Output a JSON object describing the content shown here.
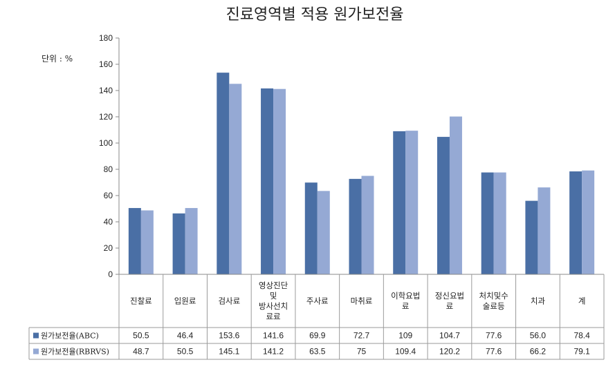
{
  "chart_data": {
    "type": "bar",
    "title": "진료영역별 적용 원가보전율",
    "unit_label": "단위 : %",
    "ylim": [
      0,
      180
    ],
    "ytick_step": 20,
    "grid": false,
    "legend_placement": "data-table",
    "categories": [
      [
        "진찰료"
      ],
      [
        "입원료"
      ],
      [
        "검사료"
      ],
      [
        "영상진단",
        "및",
        "방사선치",
        "료료"
      ],
      [
        "주사료"
      ],
      [
        "마취료"
      ],
      [
        "이학요법",
        "료"
      ],
      [
        "정신요법",
        "료"
      ],
      [
        "처치및수",
        "술료등"
      ],
      [
        "치과"
      ],
      [
        "계"
      ]
    ],
    "series": [
      {
        "name": "원가보전율(ABC)",
        "color": "#4a6fa5",
        "values": [
          50.5,
          46.4,
          153.6,
          141.6,
          69.9,
          72.7,
          109,
          104.7,
          77.6,
          56.0,
          78.4
        ],
        "labels": [
          "50.5",
          "46.4",
          "153.6",
          "141.6",
          "69.9",
          "72.7",
          "109",
          "104.7",
          "77.6",
          "56.0",
          "78.4"
        ]
      },
      {
        "name": "원가보전율(RBRVS)",
        "color": "#95a9d4",
        "values": [
          48.7,
          50.5,
          145.1,
          141.2,
          63.5,
          75,
          109.4,
          120.2,
          77.6,
          66.2,
          79.1
        ],
        "labels": [
          "48.7",
          "50.5",
          "145.1",
          "141.2",
          "63.5",
          "75",
          "109.4",
          "120.2",
          "77.6",
          "66.2",
          "79.1"
        ]
      }
    ]
  }
}
